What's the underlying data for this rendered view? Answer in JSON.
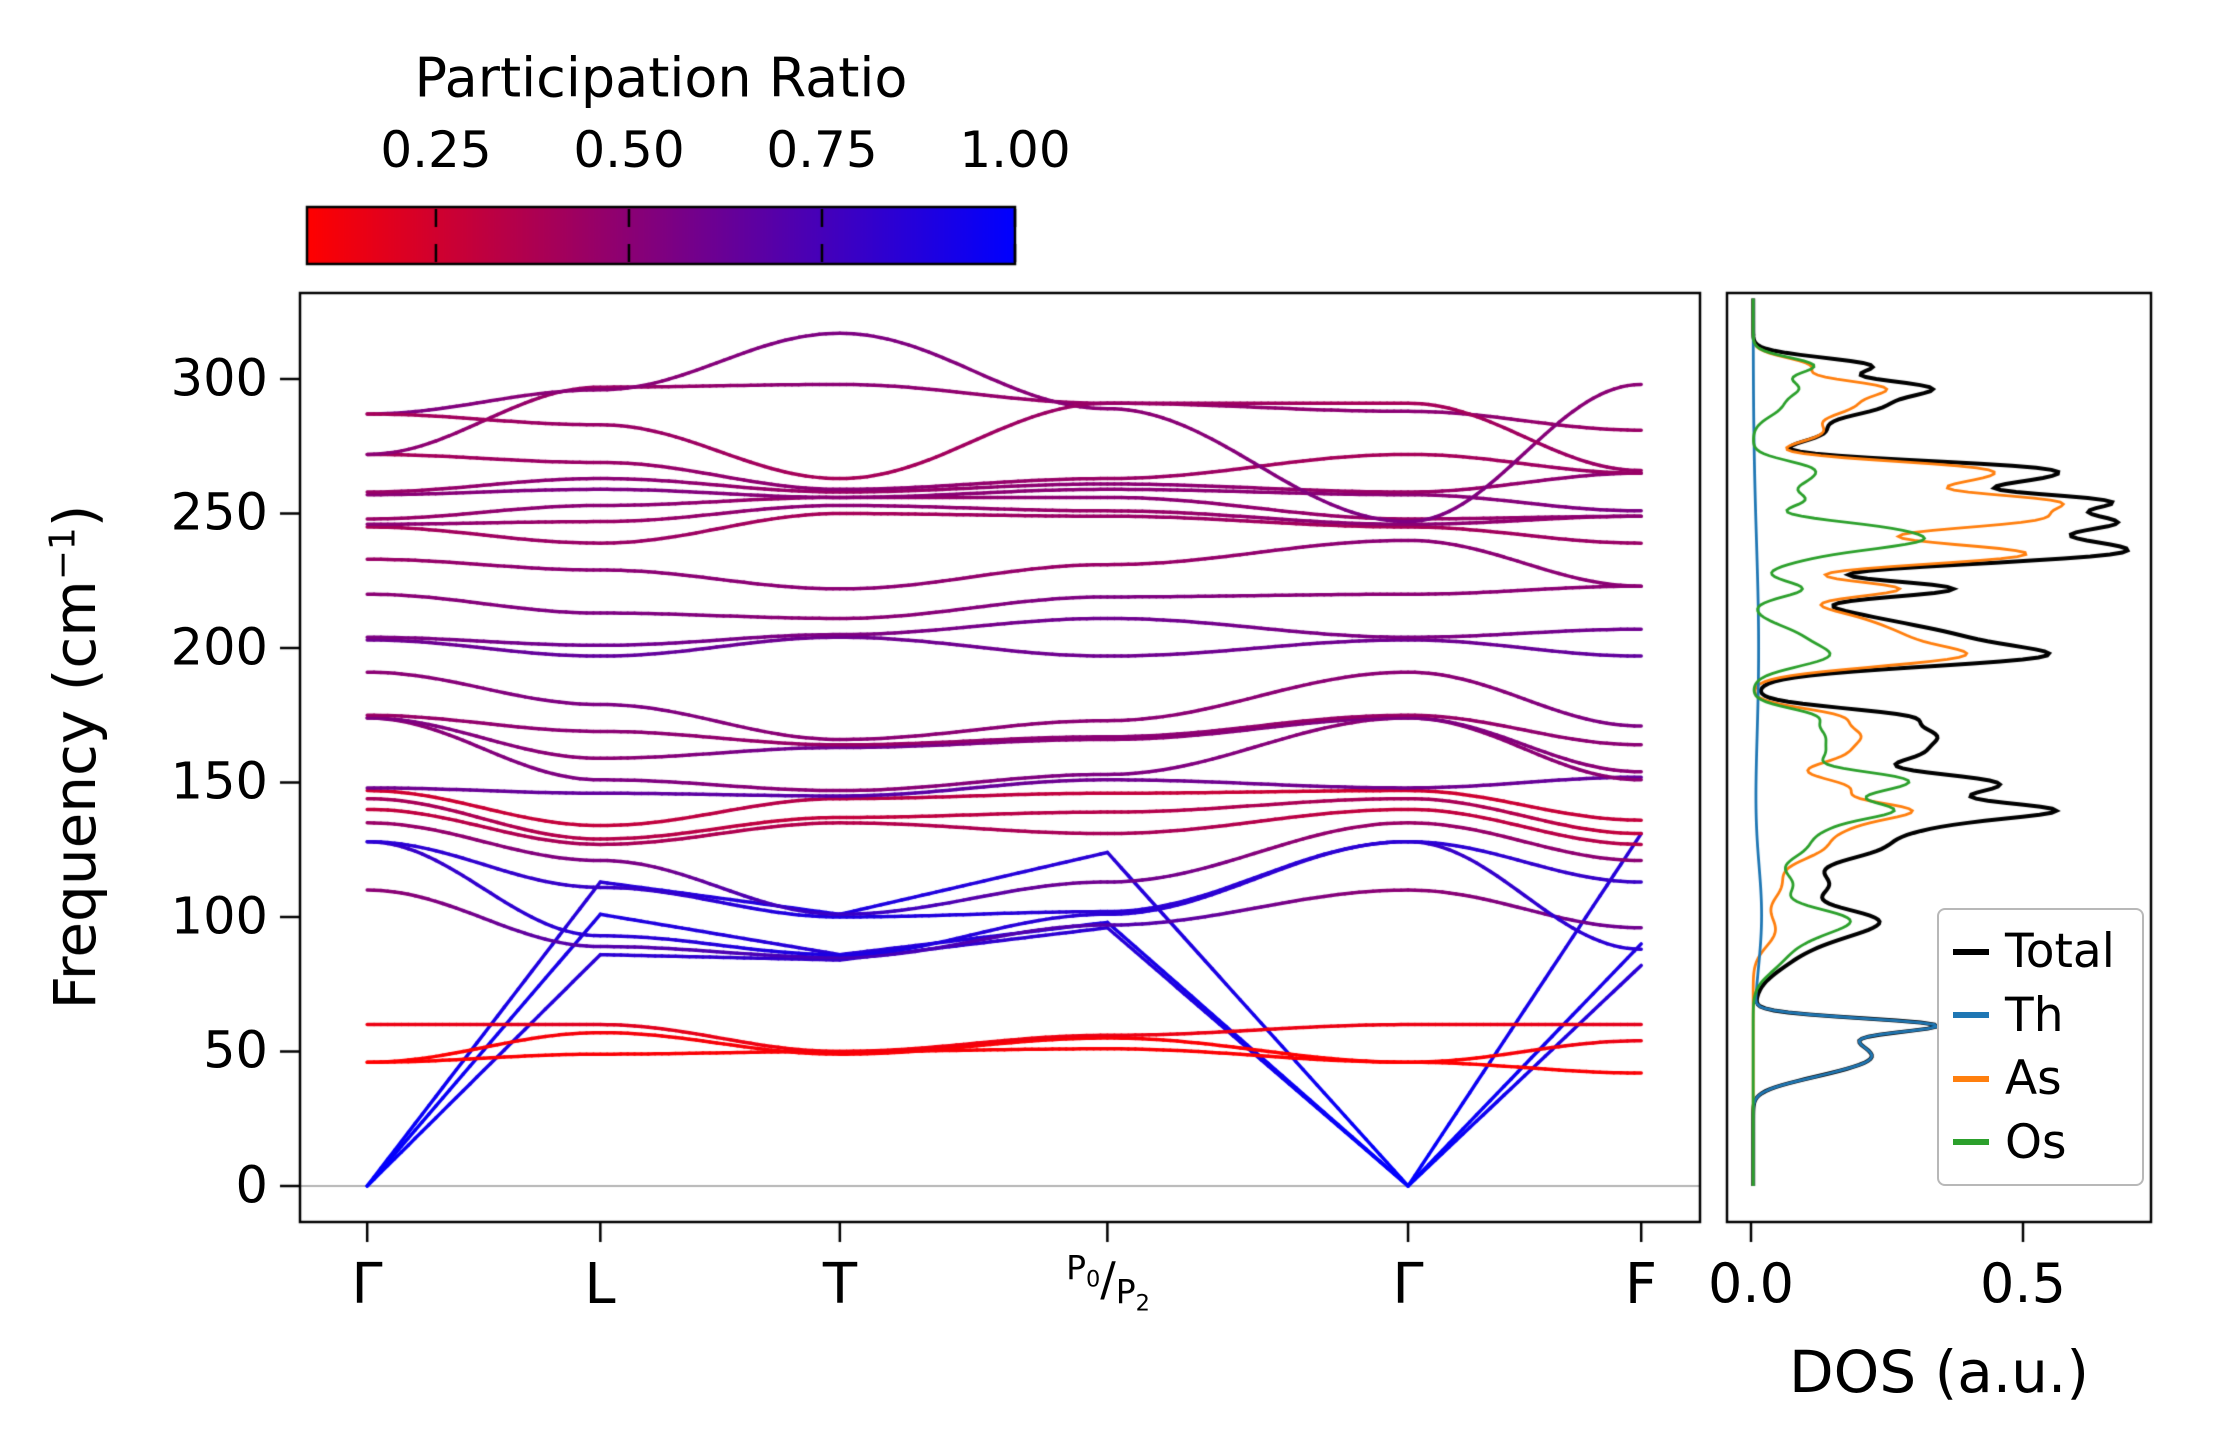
{
  "figure": {
    "colorbar": {
      "title": "Participation Ratio",
      "ticks": [
        "0.25",
        "0.50",
        "0.75",
        "1.00"
      ],
      "tick_values": [
        0.25,
        0.5,
        0.75,
        1.0
      ],
      "range": [
        0.083,
        1.0
      ],
      "color_low": "#ff0000",
      "color_high": "#0000ff"
    },
    "band_axis": {
      "ylabel": {
        "pre": "Frequency (cm",
        "sup": "−1",
        "post": ")"
      },
      "yticks": [
        "0",
        "50",
        "100",
        "150",
        "200",
        "250",
        "300"
      ],
      "ytick_values": [
        0,
        50,
        100,
        150,
        200,
        250,
        300
      ],
      "xticks": [
        "Γ",
        "L",
        "T",
        "P0/P2",
        "Γ",
        "F"
      ],
      "p_label": {
        "base1": "P",
        "sub1": "0",
        "sep": "/",
        "base2": "P",
        "sub2": "2"
      }
    },
    "dos_axis": {
      "xlabel": "DOS (a.u.)",
      "xticks": [
        "0.0",
        "0.5"
      ],
      "xtick_values": [
        0.0,
        0.5
      ]
    },
    "legend": {
      "entries": [
        {
          "label": "Total",
          "color": "#000000"
        },
        {
          "label": "Th",
          "color": "#1f77b4"
        },
        {
          "label": "As",
          "color": "#ff7f0e"
        },
        {
          "label": "Os",
          "color": "#2ca02c"
        }
      ]
    }
  },
  "chart_data": {
    "type": "line",
    "panels": [
      {
        "name": "phonon-band-structure",
        "ylabel": "Frequency (cm^-1)",
        "ylim": [
          -13.4,
          332
        ],
        "kpoint_labels": [
          "Γ",
          "L",
          "T",
          "P0/P2",
          "Γ",
          "F"
        ],
        "kpoint_fractions": [
          0,
          0.183,
          0.371,
          0.581,
          0.817,
          1.0
        ],
        "color_by": "participation_ratio",
        "colormap": {
          "low": "#ff0000",
          "high": "#0000ff",
          "min": 0.083,
          "max": 1.0
        },
        "zero_line_color": "#b3b3b3",
        "bands": [
          {
            "f": [
              0,
              86,
              84,
              96,
              0,
              82
            ],
            "pr": [
              1,
              0.85,
              0.8,
              0.85,
              1,
              0.85
            ],
            "interp": "lin"
          },
          {
            "f": [
              0,
              101,
              86,
              98,
              0,
              90
            ],
            "pr": [
              1,
              0.9,
              0.85,
              0.9,
              1,
              0.9
            ],
            "interp": "lin"
          },
          {
            "f": [
              0,
              113,
              101,
              124,
              0,
              131
            ],
            "pr": [
              1,
              0.85,
              0.9,
              0.85,
              1,
              0.85
            ],
            "interp": "lin"
          },
          {
            "f": [
              46,
              57,
              49,
              55,
              46,
              54
            ],
            "pr": [
              0.08,
              0.12,
              0.1,
              0.1,
              0.08,
              0.15
            ],
            "interp": "cos"
          },
          {
            "f": [
              46,
              49,
              50,
              51,
              46,
              42
            ],
            "pr": [
              0.08,
              0.1,
              0.1,
              0.1,
              0.08,
              0.1
            ],
            "interp": "cos"
          },
          {
            "f": [
              60,
              60,
              50,
              56,
              60,
              60
            ],
            "pr": [
              0.15,
              0.2,
              0.12,
              0.15,
              0.15,
              0.18
            ],
            "interp": "cos"
          },
          {
            "f": [
              110,
              89,
              85,
              97,
              110,
              96
            ],
            "pr": [
              0.5,
              0.7,
              0.75,
              0.7,
              0.5,
              0.6
            ],
            "interp": "cos"
          },
          {
            "f": [
              128,
              93,
              86,
              101,
              128,
              88
            ],
            "pr": [
              0.8,
              0.85,
              0.9,
              0.85,
              0.8,
              0.85
            ],
            "interp": "cos"
          },
          {
            "f": [
              128,
              111,
              100,
              102,
              128,
              113
            ],
            "pr": [
              0.85,
              0.8,
              0.9,
              0.85,
              0.85,
              0.8
            ],
            "interp": "cos"
          },
          {
            "f": [
              135,
              121,
              101,
              113,
              135,
              121
            ],
            "pr": [
              0.45,
              0.55,
              0.8,
              0.6,
              0.45,
              0.5
            ],
            "interp": "cos"
          },
          {
            "f": [
              140,
              127,
              135,
              131,
              140,
              127
            ],
            "pr": [
              0.3,
              0.4,
              0.35,
              0.4,
              0.3,
              0.35
            ],
            "interp": "cos"
          },
          {
            "f": [
              144,
              129,
              137,
              139,
              144,
              131
            ],
            "pr": [
              0.4,
              0.35,
              0.3,
              0.35,
              0.4,
              0.3
            ],
            "interp": "cos"
          },
          {
            "f": [
              147,
              134,
              144,
              146,
              147,
              136
            ],
            "pr": [
              0.25,
              0.3,
              0.35,
              0.3,
              0.25,
              0.3
            ],
            "interp": "cos"
          },
          {
            "f": [
              148,
              146,
              145,
              151,
              148,
              152
            ],
            "pr": [
              0.6,
              0.65,
              0.7,
              0.6,
              0.6,
              0.65
            ],
            "interp": "cos"
          },
          {
            "f": [
              174,
              151,
              147,
              153,
              174,
              151
            ],
            "pr": [
              0.5,
              0.55,
              0.5,
              0.55,
              0.5,
              0.5
            ],
            "interp": "cos"
          },
          {
            "f": [
              174,
              159,
              163,
              166,
              174,
              154
            ],
            "pr": [
              0.55,
              0.5,
              0.6,
              0.5,
              0.55,
              0.5
            ],
            "interp": "cos"
          },
          {
            "f": [
              175,
              169,
              164,
              167,
              175,
              164
            ],
            "pr": [
              0.45,
              0.5,
              0.45,
              0.5,
              0.45,
              0.5
            ],
            "interp": "cos"
          },
          {
            "f": [
              191,
              179,
              166,
              173,
              191,
              171
            ],
            "pr": [
              0.5,
              0.55,
              0.5,
              0.5,
              0.5,
              0.55
            ],
            "interp": "cos"
          },
          {
            "f": [
              203,
              197,
              204,
              197,
              203,
              197
            ],
            "pr": [
              0.6,
              0.65,
              0.6,
              0.6,
              0.6,
              0.65
            ],
            "interp": "cos"
          },
          {
            "f": [
              204,
              201,
              205,
              211,
              204,
              207
            ],
            "pr": [
              0.55,
              0.6,
              0.55,
              0.6,
              0.55,
              0.6
            ],
            "interp": "cos"
          },
          {
            "f": [
              220,
              213,
              211,
              219,
              220,
              223
            ],
            "pr": [
              0.5,
              0.55,
              0.5,
              0.55,
              0.5,
              0.5
            ],
            "interp": "cos"
          },
          {
            "f": [
              233,
              229,
              222,
              231,
              240,
              223
            ],
            "pr": [
              0.45,
              0.5,
              0.5,
              0.45,
              0.5,
              0.5
            ],
            "interp": "cos"
          },
          {
            "f": [
              245,
              239,
              250,
              249,
              245,
              239
            ],
            "pr": [
              0.4,
              0.45,
              0.4,
              0.45,
              0.4,
              0.45
            ],
            "interp": "cos"
          },
          {
            "f": [
              246,
              247,
              253,
              251,
              246,
              249
            ],
            "pr": [
              0.5,
              0.45,
              0.5,
              0.45,
              0.5,
              0.45
            ],
            "interp": "cos"
          },
          {
            "f": [
              248,
              253,
              256,
              256,
              248,
              249
            ],
            "pr": [
              0.45,
              0.5,
              0.45,
              0.5,
              0.45,
              0.5
            ],
            "interp": "cos"
          },
          {
            "f": [
              257,
              259,
              256,
              259,
              257,
              251
            ],
            "pr": [
              0.5,
              0.55,
              0.5,
              0.5,
              0.5,
              0.55
            ],
            "interp": "cos"
          },
          {
            "f": [
              258,
              263,
              258,
              261,
              258,
              265
            ],
            "pr": [
              0.45,
              0.5,
              0.45,
              0.5,
              0.45,
              0.5
            ],
            "interp": "cos"
          },
          {
            "f": [
              272,
              269,
              259,
              263,
              272,
              265
            ],
            "pr": [
              0.4,
              0.45,
              0.5,
              0.45,
              0.4,
              0.45
            ],
            "interp": "cos"
          },
          {
            "f": [
              272,
              297,
              298,
              291,
              288,
              281
            ],
            "pr": [
              0.5,
              0.45,
              0.5,
              0.45,
              0.5,
              0.45
            ],
            "interp": "cos"
          },
          {
            "f": [
              287,
              296,
              317,
              289,
              247,
              298
            ],
            "pr": [
              0.55,
              0.5,
              0.55,
              0.5,
              0.55,
              0.5
            ],
            "interp": "cos"
          },
          {
            "f": [
              287,
              283,
              263,
              291,
              291,
              266
            ],
            "pr": [
              0.4,
              0.45,
              0.4,
              0.45,
              0.4,
              0.45
            ],
            "interp": "cos"
          }
        ]
      },
      {
        "name": "dos",
        "xlabel": "DOS (a.u.)",
        "xlim": [
          -0.045,
          0.735
        ],
        "baseline": 0.004,
        "series": [
          {
            "name": "Total",
            "color": "#000000",
            "derived": "sum"
          },
          {
            "name": "Th",
            "color": "#1f77b4",
            "peaks": [
              [
                42,
                0.09,
                4
              ],
              [
                48,
                0.16,
                4
              ],
              [
                55,
                0.13,
                4
              ],
              [
                60,
                0.27,
                2.5
              ],
              [
                100,
                0.015,
                20
              ],
              [
                200,
                0.01,
                40
              ]
            ]
          },
          {
            "name": "As",
            "color": "#ff7f0e",
            "peaks": [
              [
                95,
                0.04,
                6
              ],
              [
                112,
                0.05,
                6
              ],
              [
                126,
                0.12,
                5
              ],
              [
                135,
                0.14,
                4
              ],
              [
                140,
                0.2,
                3
              ],
              [
                148,
                0.17,
                4
              ],
              [
                160,
                0.14,
                4
              ],
              [
                168,
                0.17,
                4
              ],
              [
                175,
                0.12,
                3
              ],
              [
                197,
                0.36,
                4
              ],
              [
                205,
                0.2,
                4
              ],
              [
                212,
                0.14,
                4
              ],
              [
                222,
                0.26,
                3
              ],
              [
                235,
                0.5,
                4
              ],
              [
                248,
                0.5,
                4
              ],
              [
                255,
                0.42,
                3
              ],
              [
                262,
                0.28,
                3
              ],
              [
                267,
                0.34,
                3
              ],
              [
                280,
                0.12,
                4
              ],
              [
                290,
                0.17,
                4
              ],
              [
                297,
                0.2,
                3
              ],
              [
                305,
                0.1,
                3
              ]
            ]
          },
          {
            "name": "Os",
            "color": "#2ca02c",
            "peaks": [
              [
                85,
                0.05,
                6
              ],
              [
                95,
                0.09,
                5
              ],
              [
                100,
                0.11,
                4
              ],
              [
                112,
                0.07,
                5
              ],
              [
                126,
                0.09,
                5
              ],
              [
                135,
                0.11,
                4
              ],
              [
                140,
                0.18,
                3
              ],
              [
                148,
                0.2,
                4
              ],
              [
                152,
                0.13,
                3
              ],
              [
                160,
                0.11,
                4
              ],
              [
                168,
                0.11,
                4
              ],
              [
                175,
                0.09,
                3
              ],
              [
                197,
                0.13,
                4
              ],
              [
                205,
                0.07,
                4
              ],
              [
                222,
                0.09,
                3
              ],
              [
                235,
                0.1,
                4
              ],
              [
                240,
                0.22,
                3
              ],
              [
                245,
                0.18,
                3
              ],
              [
                255,
                0.09,
                3
              ],
              [
                262,
                0.07,
                3
              ],
              [
                267,
                0.09,
                3
              ],
              [
                290,
                0.05,
                4
              ],
              [
                297,
                0.07,
                3
              ],
              [
                305,
                0.11,
                3
              ]
            ]
          }
        ]
      }
    ]
  }
}
